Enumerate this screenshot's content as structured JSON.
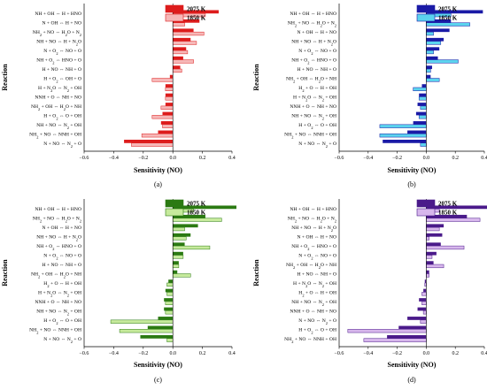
{
  "chart_data": [
    {
      "type": "bar",
      "orientation": "horizontal",
      "panel_label": "(a)",
      "xlabel": "Sensitivity (NO)",
      "ylabel": "Reaction",
      "xlim": [
        -0.6,
        0.4
      ],
      "xticks": [
        "−0.6",
        "−0.4",
        "−0.2",
        "0.0",
        "0.2",
        "0.4"
      ],
      "xtick_values": [
        -0.6,
        -0.4,
        -0.2,
        0.0,
        0.2,
        0.4
      ],
      "grid": false,
      "legend_position": "top-right",
      "colors": [
        "#dd1c1c",
        "#f6b7b7"
      ],
      "categories": [
        "NH + OH <=> H + HNO",
        "N + OH <=> H + NO",
        "NH2 + NO <=> H2O + N2",
        "NH + NO <=> H + N2O",
        "N + O2 <=> NO + O",
        "NH + O2 <=> HNO + O",
        "H + NO <=> NH + O",
        "H + O2 <=> OH + O",
        "H + N2O <=> N2 + OH",
        "NNH + O <=> NH + NO",
        "NH2 + OH <=> H2O + NH",
        "H + O2 <=> O + OH",
        "NH + NO <=> N2 + OH",
        "NH2 + NO <=> NNH + OH",
        "N + NO <=> N2 + O"
      ],
      "series": [
        {
          "name": "2075 K",
          "values": [
            0.31,
            0.18,
            0.14,
            0.12,
            0.09,
            0.07,
            0.05,
            -0.02,
            -0.05,
            -0.05,
            -0.05,
            -0.07,
            -0.08,
            -0.1,
            -0.33
          ]
        },
        {
          "name": "1850 K",
          "values": [
            0.22,
            0.08,
            0.21,
            0.16,
            0.1,
            0.14,
            0.06,
            -0.14,
            -0.05,
            -0.05,
            -0.08,
            -0.14,
            -0.07,
            -0.21,
            -0.28
          ]
        }
      ]
    },
    {
      "type": "bar",
      "orientation": "horizontal",
      "panel_label": "(b)",
      "xlabel": "Sensitivity (NO)",
      "ylabel": "Reaction",
      "xlim": [
        -0.6,
        0.4
      ],
      "xticks": [
        "−0.6",
        "−0.4",
        "−0.2",
        "0.0",
        "0.2",
        "0.4"
      ],
      "xtick_values": [
        -0.6,
        -0.4,
        -0.2,
        0.0,
        0.2,
        0.4
      ],
      "grid": false,
      "legend_position": "top-right",
      "colors": [
        "#1a1aa6",
        "#5bd3ee"
      ],
      "categories": [
        "NH + OH <=> H + HNO",
        "NH2 + NO <=> H2O + N2",
        "N + OH <=> H + NO",
        "NH + NO <=> H + N2O",
        "N + O2 <=> NO + O",
        "NH + O2 <=> HNO + O",
        "H + NO <=> NH + O",
        "NH2 + OH <=> H2O + NH",
        "H2 + O <=> H + OH",
        "H + N2O <=> N2 + OH",
        "NNH + O <=> NH + NO",
        "NH + NO <=> N2 + OH",
        "H + O2 <=> O + OH",
        "NH2 + NO <=> NNH + OH",
        "N + NO <=> N2 + O"
      ],
      "series": [
        {
          "name": "2075 K",
          "values": [
            0.39,
            0.17,
            0.16,
            0.12,
            0.09,
            0.08,
            0.04,
            0.03,
            -0.03,
            -0.05,
            -0.06,
            -0.07,
            -0.09,
            -0.13,
            -0.3
          ]
        },
        {
          "name": "1850 K",
          "values": [
            0.17,
            0.3,
            0.05,
            0.1,
            0.05,
            0.22,
            0.03,
            0.09,
            -0.09,
            -0.05,
            -0.04,
            -0.05,
            -0.32,
            -0.32,
            -0.04
          ]
        }
      ]
    },
    {
      "type": "bar",
      "orientation": "horizontal",
      "panel_label": "(c)",
      "xlabel": "Sensitivity (NO)",
      "ylabel": "Reaction",
      "xlim": [
        -0.6,
        0.4
      ],
      "xticks": [
        "−0.6",
        "−0.4",
        "−0.2",
        "0.0",
        "0.2",
        "0.4"
      ],
      "xtick_values": [
        -0.6,
        -0.4,
        -0.2,
        0.0,
        0.2,
        0.4
      ],
      "grid": false,
      "legend_position": "top-right",
      "colors": [
        "#2b7a12",
        "#c6ea9c"
      ],
      "categories": [
        "NH + OH <=> H + HNO",
        "NH2 + NO <=> H2O + N2",
        "N + OH <=> H + NO",
        "NH + NO <=> H + N2O",
        "NH + O2 <=> HNO + O",
        "N + O2 <=> NO + O",
        "H + NO <=> NH + O",
        "NH2 + OH <=> H2O + NH",
        "H2 + O <=> H + OH",
        "H + N2O <=> N2 + OH",
        "NNH + O <=> NH + NO",
        "NH + NO <=> N2 + OH",
        "H + O2 <=> O + OH",
        "NH2 + NO <=> NNH + OH",
        "N + NO <=> N2 + O"
      ],
      "series": [
        {
          "name": "2075 K",
          "values": [
            0.43,
            0.22,
            0.17,
            0.12,
            0.08,
            0.07,
            0.04,
            0.03,
            -0.03,
            -0.05,
            -0.06,
            -0.06,
            -0.1,
            -0.17,
            -0.22
          ]
        },
        {
          "name": "1850 K",
          "values": [
            0.14,
            0.33,
            0.08,
            0.09,
            0.25,
            0.07,
            0.04,
            0.12,
            -0.04,
            -0.04,
            -0.05,
            -0.05,
            -0.42,
            -0.36,
            -0.04
          ]
        }
      ]
    },
    {
      "type": "bar",
      "orientation": "horizontal",
      "panel_label": "(d)",
      "xlabel": "Sensitivity (NO)",
      "ylabel": "Reaction",
      "xlim": [
        -0.6,
        0.4
      ],
      "xticks": [
        "−0.6",
        "−0.4",
        "−0.2",
        "0.0",
        "0.2",
        "0.4"
      ],
      "xtick_values": [
        -0.6,
        -0.4,
        -0.2,
        0.0,
        0.2,
        0.4
      ],
      "grid": false,
      "legend_position": "top-right",
      "colors": [
        "#4a1a8a",
        "#d7b7ec"
      ],
      "categories": [
        "NH + OH <=> H + HNO",
        "NH2 + NO <=> H2O + N2",
        "NH + NO <=> H + N2O",
        "N + OH <=> H + NO",
        "NH + O2 <=> HNO + O",
        "N + O2 <=> NO + O",
        "NH2 + OH <=> H2O + NH",
        "H + NO <=> NH + O",
        "H + N2O <=> N2 + OH",
        "H2 + O <=> H + OH",
        "NH + NO <=> N2 + OH",
        "NNH + O <=> NH + NO",
        "N + NO <=> N2 + O",
        "H + O2 <=> O + OH",
        "NH2 + NO <=> NNH + OH"
      ],
      "series": [
        {
          "name": "2075 K",
          "values": [
            0.45,
            0.28,
            0.12,
            0.11,
            0.1,
            0.07,
            0.05,
            0.02,
            -0.01,
            -0.02,
            -0.05,
            -0.06,
            -0.13,
            -0.19,
            -0.27
          ]
        },
        {
          "name": "1850 K",
          "values": [
            0.09,
            0.37,
            0.09,
            0.02,
            0.26,
            0.04,
            0.12,
            0.02,
            -0.01,
            -0.03,
            -0.03,
            -0.02,
            -0.04,
            -0.54,
            -0.43
          ]
        }
      ]
    }
  ]
}
